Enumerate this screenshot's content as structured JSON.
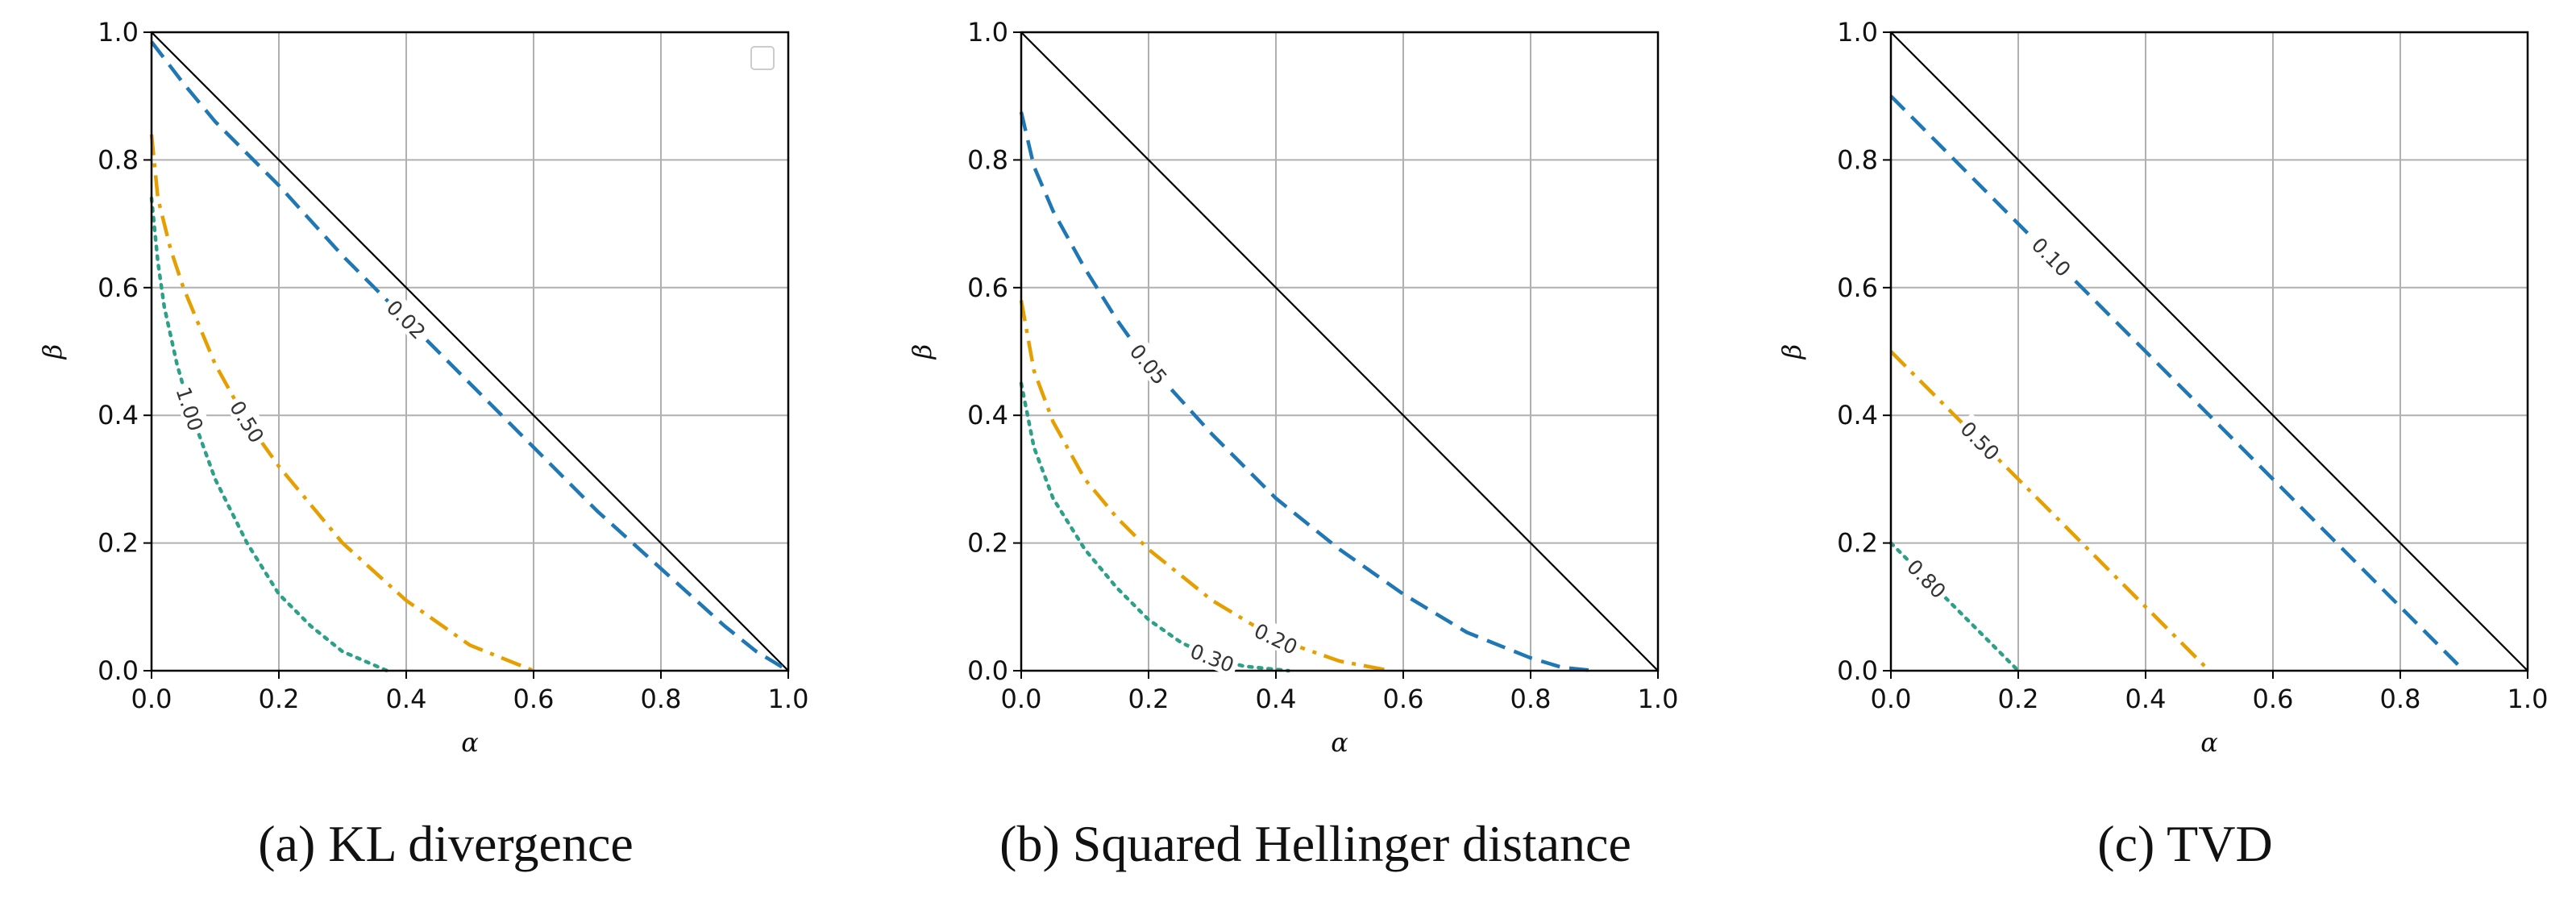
{
  "chart_data": [
    {
      "type": "line",
      "caption": "(a) KL divergence",
      "xlabel": "α",
      "ylabel": "β",
      "xlim": [
        0.0,
        1.0
      ],
      "ylim": [
        0.0,
        1.0
      ],
      "xticks": [
        "0.0",
        "0.2",
        "0.4",
        "0.6",
        "0.8",
        "1.0"
      ],
      "yticks": [
        "0.0",
        "0.2",
        "0.4",
        "0.6",
        "0.8",
        "1.0"
      ],
      "grid": true,
      "legend": "top-right (empty)",
      "boundary": {
        "x": [
          0.0,
          1.0
        ],
        "y": [
          1.0,
          0.0
        ],
        "color": "#000000"
      },
      "series": [
        {
          "label": "0.02",
          "color": "#1f77b4",
          "dash": "dashed",
          "x": [
            0.0,
            0.05,
            0.1,
            0.2,
            0.3,
            0.4,
            0.5,
            0.6,
            0.7,
            0.8,
            0.9,
            0.95,
            1.0
          ],
          "y": [
            0.985,
            0.92,
            0.86,
            0.76,
            0.65,
            0.55,
            0.45,
            0.35,
            0.25,
            0.16,
            0.07,
            0.03,
            0.0
          ]
        },
        {
          "label": "0.50",
          "color": "#e69f00",
          "dash": "dashdot",
          "x": [
            0.0,
            0.01,
            0.03,
            0.05,
            0.1,
            0.15,
            0.2,
            0.25,
            0.3,
            0.4,
            0.5,
            0.6
          ],
          "y": [
            0.84,
            0.74,
            0.66,
            0.6,
            0.48,
            0.39,
            0.32,
            0.26,
            0.2,
            0.11,
            0.04,
            0.0
          ]
        },
        {
          "label": "1.00",
          "color": "#2ca089",
          "dash": "dotted",
          "x": [
            0.0,
            0.01,
            0.02,
            0.04,
            0.06,
            0.1,
            0.15,
            0.2,
            0.25,
            0.3,
            0.37
          ],
          "y": [
            0.74,
            0.64,
            0.57,
            0.48,
            0.41,
            0.3,
            0.2,
            0.12,
            0.07,
            0.03,
            0.0
          ]
        }
      ]
    },
    {
      "type": "line",
      "caption": "(b) Squared Hellinger distance",
      "xlabel": "α",
      "ylabel": "β",
      "xlim": [
        0.0,
        1.0
      ],
      "ylim": [
        0.0,
        1.0
      ],
      "xticks": [
        "0.0",
        "0.2",
        "0.4",
        "0.6",
        "0.8",
        "1.0"
      ],
      "yticks": [
        "0.0",
        "0.2",
        "0.4",
        "0.6",
        "0.8",
        "1.0"
      ],
      "grid": true,
      "boundary": {
        "x": [
          0.0,
          1.0
        ],
        "y": [
          1.0,
          0.0
        ],
        "color": "#000000"
      },
      "series": [
        {
          "label": "0.05",
          "color": "#1f77b4",
          "dash": "dashed",
          "x": [
            0.0,
            0.02,
            0.05,
            0.1,
            0.15,
            0.2,
            0.3,
            0.4,
            0.5,
            0.6,
            0.7,
            0.8,
            0.85,
            0.9
          ],
          "y": [
            0.875,
            0.79,
            0.72,
            0.63,
            0.55,
            0.48,
            0.37,
            0.27,
            0.19,
            0.12,
            0.06,
            0.02,
            0.005,
            0.0
          ]
        },
        {
          "label": "0.20",
          "color": "#e69f00",
          "dash": "dashdot",
          "x": [
            0.0,
            0.02,
            0.05,
            0.1,
            0.15,
            0.2,
            0.3,
            0.4,
            0.5,
            0.58
          ],
          "y": [
            0.58,
            0.47,
            0.39,
            0.3,
            0.24,
            0.19,
            0.11,
            0.05,
            0.015,
            0.0
          ]
        },
        {
          "label": "0.30",
          "color": "#2ca089",
          "dash": "dotted",
          "x": [
            0.0,
            0.02,
            0.05,
            0.1,
            0.15,
            0.2,
            0.25,
            0.3,
            0.35,
            0.42
          ],
          "y": [
            0.45,
            0.35,
            0.27,
            0.19,
            0.13,
            0.08,
            0.045,
            0.02,
            0.007,
            0.0
          ]
        }
      ]
    },
    {
      "type": "line",
      "caption": "(c) TVD",
      "xlabel": "α",
      "ylabel": "β",
      "xlim": [
        0.0,
        1.0
      ],
      "ylim": [
        0.0,
        1.0
      ],
      "xticks": [
        "0.0",
        "0.2",
        "0.4",
        "0.6",
        "0.8",
        "1.0"
      ],
      "yticks": [
        "0.0",
        "0.2",
        "0.4",
        "0.6",
        "0.8",
        "1.0"
      ],
      "grid": true,
      "boundary": {
        "x": [
          0.0,
          1.0
        ],
        "y": [
          1.0,
          0.0
        ],
        "color": "#000000"
      },
      "series": [
        {
          "label": "0.10",
          "color": "#1f77b4",
          "dash": "dashed",
          "x": [
            0.0,
            0.9
          ],
          "y": [
            0.9,
            0.0
          ]
        },
        {
          "label": "0.50",
          "color": "#e69f00",
          "dash": "dashdot",
          "x": [
            0.0,
            0.5
          ],
          "y": [
            0.5,
            0.0
          ]
        },
        {
          "label": "0.80",
          "color": "#2ca089",
          "dash": "dotted",
          "x": [
            0.0,
            0.2
          ],
          "y": [
            0.2,
            0.0
          ]
        }
      ]
    }
  ]
}
